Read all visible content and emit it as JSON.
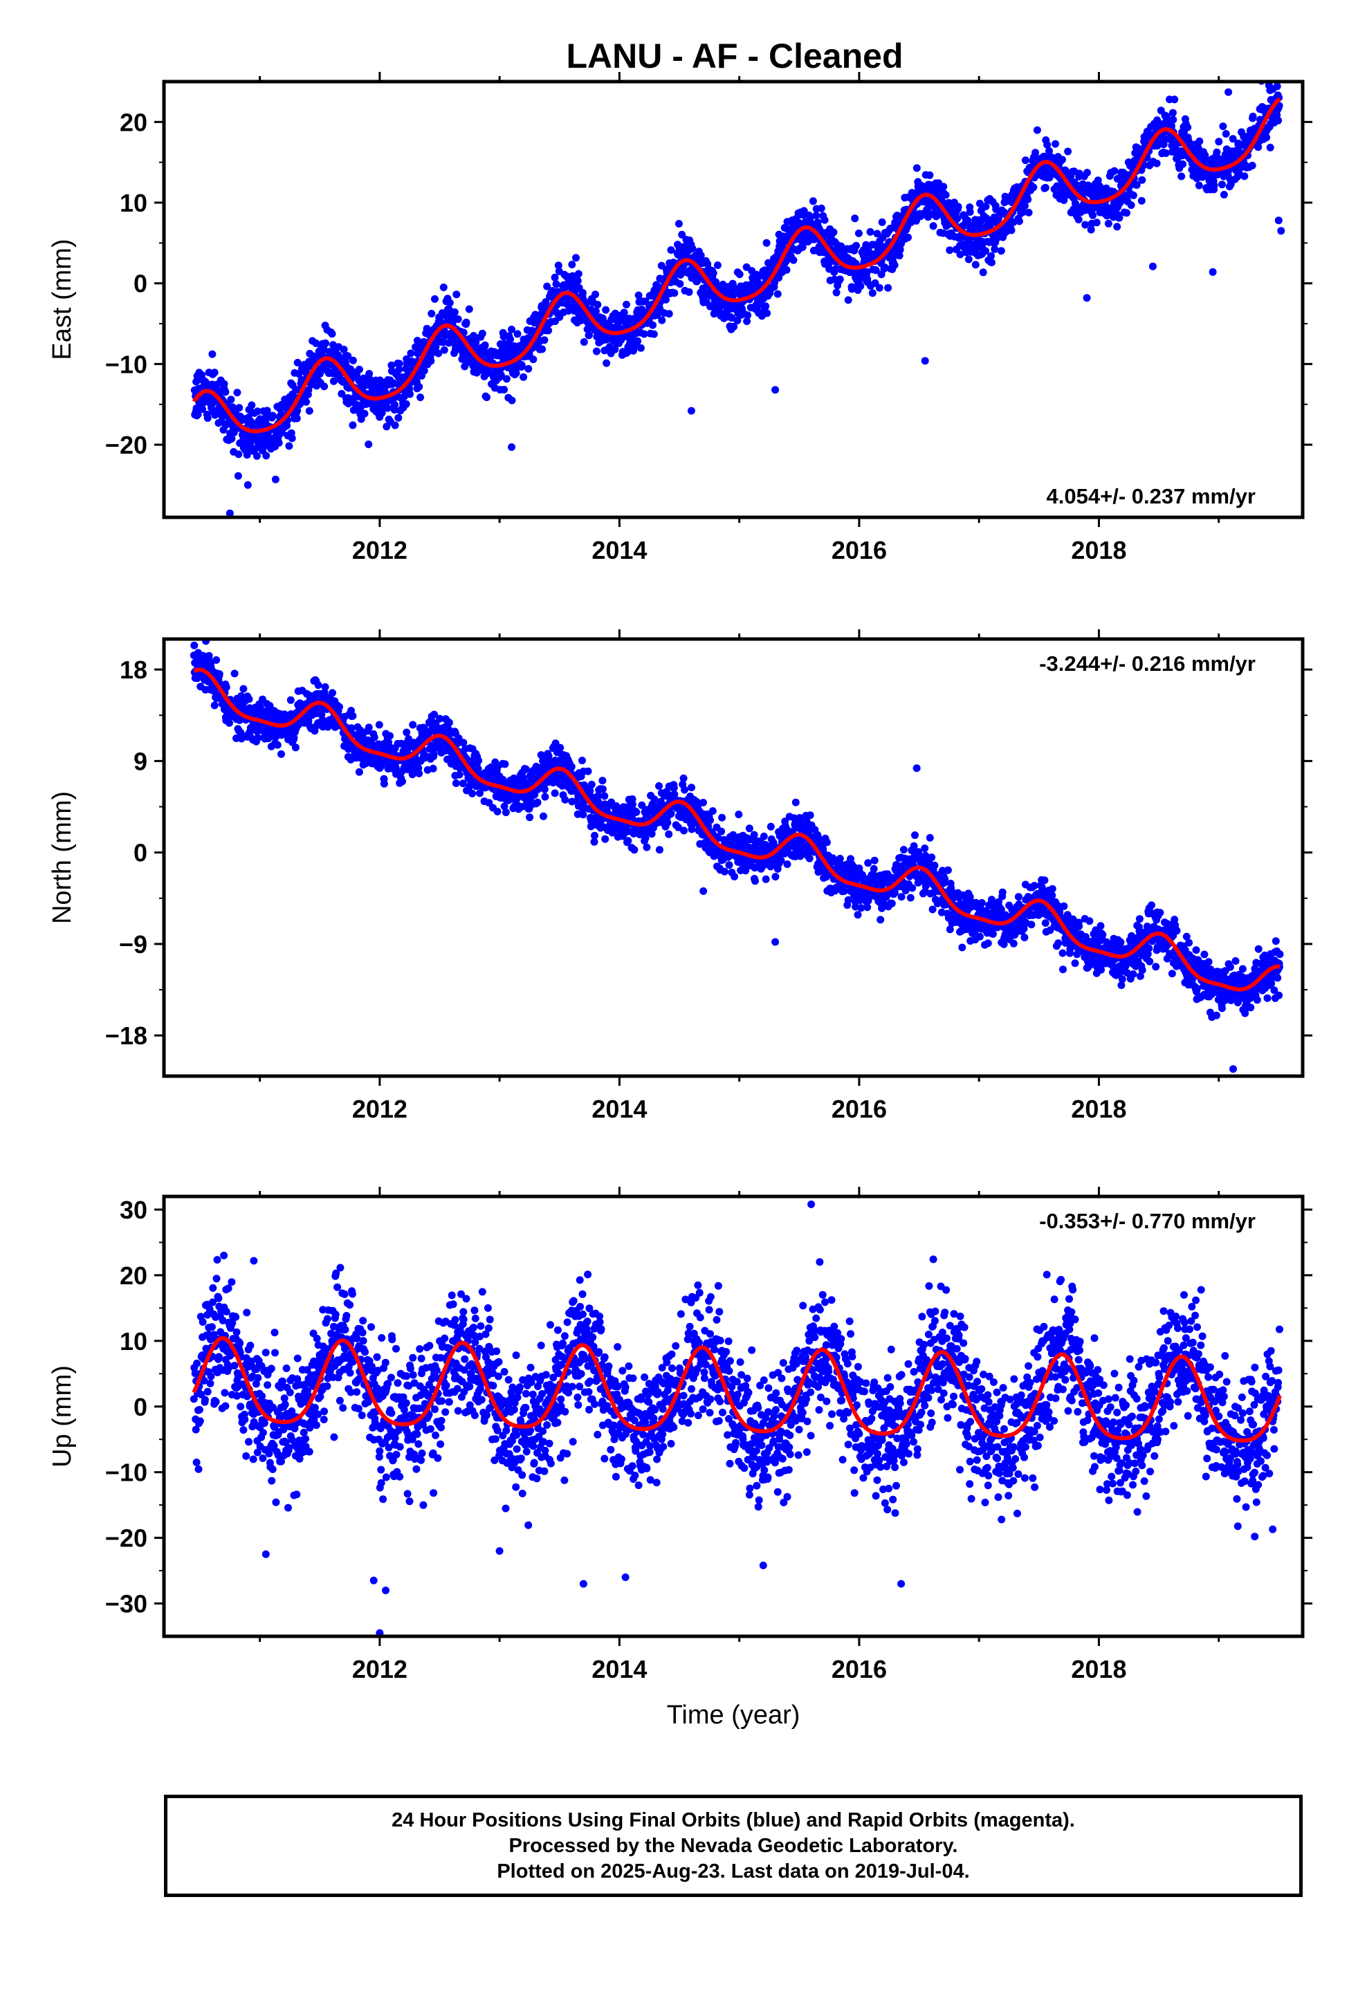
{
  "title": "LANU  - AF - Cleaned",
  "colors": {
    "points": "#0000ff",
    "fit": "#ff0000",
    "frame": "#000000"
  },
  "chart_data": [
    {
      "type": "scatter",
      "component": "east",
      "ylabel": "East (mm)",
      "xlabel": "",
      "xlim": [
        2010.2,
        2019.7
      ],
      "ylim": [
        -29,
        25
      ],
      "x_ticks": [
        2012,
        2014,
        2016,
        2018
      ],
      "x_tick_labels": [
        "2012",
        "2014",
        "2016",
        "2018"
      ],
      "y_ticks": [
        -20,
        -10,
        0,
        10,
        20
      ],
      "y_tick_labels": [
        "−20",
        "−10",
        "0",
        "10",
        "20"
      ],
      "rate_label": "4.054+/- 0.237 mm/yr",
      "rate_position": "bottom-right",
      "data_span": [
        2010.45,
        2019.51
      ],
      "fit": {
        "intercept_at_2015": 0.7,
        "rate": 4.054,
        "annual_amp": 3.4,
        "annual_phase_month": 6.5,
        "semiannual_amp": 0.6
      },
      "scatter_sd": 1.6,
      "outliers": [
        [
          2010.75,
          -28.5
        ],
        [
          2010.9,
          -25
        ],
        [
          2013.1,
          -20.3
        ],
        [
          2014.6,
          -15.8
        ],
        [
          2015.3,
          -13.2
        ],
        [
          2016.55,
          -9.6
        ],
        [
          2017.9,
          -1.8
        ],
        [
          2018.45,
          2.1
        ],
        [
          2018.95,
          1.4
        ],
        [
          2019.5,
          7.8
        ],
        [
          2019.52,
          6.5
        ],
        [
          2019.08,
          23.7
        ]
      ],
      "fit_label": "red"
    },
    {
      "type": "scatter",
      "component": "north",
      "ylabel": "North (mm)",
      "xlabel": "",
      "xlim": [
        2010.2,
        2019.7
      ],
      "ylim": [
        -22,
        21
      ],
      "x_ticks": [
        2012,
        2014,
        2016,
        2018
      ],
      "x_tick_labels": [
        "2012",
        "2014",
        "2016",
        "2018"
      ],
      "y_ticks": [
        -18,
        -9,
        0,
        9,
        18
      ],
      "y_tick_labels": [
        "−18",
        "−9",
        "0",
        "9",
        "18"
      ],
      "rate_label": "-3.244+/- 0.216 mm/yr",
      "rate_position": "top-right",
      "data_span": [
        2010.45,
        2019.51
      ],
      "fit": {
        "intercept_at_2015": 1.2,
        "rate": -3.244,
        "annual_amp": 1.7,
        "annual_phase_month": 6.2,
        "semiannual_amp": 0.5
      },
      "scatter_sd": 1.1,
      "outliers": [
        [
          2016.48,
          8.3
        ],
        [
          2014.7,
          -3.8
        ],
        [
          2015.3,
          -8.8
        ],
        [
          2017.7,
          -11.5
        ],
        [
          2019.12,
          -21.3
        ],
        [
          2010.55,
          20.8
        ]
      ],
      "fit_label": "red"
    },
    {
      "type": "scatter",
      "component": "up",
      "ylabel": "Up (mm)",
      "xlabel": "Time (year)",
      "xlim": [
        2010.2,
        2019.7
      ],
      "ylim": [
        -35,
        32
      ],
      "x_ticks": [
        2012,
        2014,
        2016,
        2018
      ],
      "x_tick_labels": [
        "2012",
        "2014",
        "2016",
        "2018"
      ],
      "y_ticks": [
        -30,
        -20,
        -10,
        0,
        10,
        20,
        30
      ],
      "y_tick_labels": [
        "−30",
        "−20",
        "−10",
        "0",
        "10",
        "20",
        "30"
      ],
      "rate_label": "-0.353+/- 0.770 mm/yr",
      "rate_position": "top-right",
      "data_span": [
        2010.45,
        2019.51
      ],
      "fit": {
        "intercept_at_2015": 1.4,
        "rate": -0.353,
        "annual_amp": 6.3,
        "annual_phase_month": 8.3,
        "semiannual_amp": 1.2
      },
      "scatter_sd": 4.8,
      "outliers": [
        [
          2015.6,
          30.8
        ],
        [
          2010.7,
          23
        ],
        [
          2010.95,
          22.2
        ],
        [
          2012.0,
          -34.5
        ],
        [
          2012.05,
          -28
        ],
        [
          2011.95,
          -26.5
        ],
        [
          2013.7,
          -27
        ],
        [
          2014.05,
          -26
        ],
        [
          2016.35,
          -27
        ],
        [
          2011.05,
          -22.5
        ],
        [
          2013.0,
          -22
        ],
        [
          2015.2,
          -24.2
        ],
        [
          2019.3,
          -19.8
        ],
        [
          2019.45,
          -18.7
        ]
      ],
      "fit_label": "red"
    }
  ],
  "footer": {
    "line1": "24 Hour Positions Using Final Orbits (blue) and Rapid Orbits (magenta).",
    "line2": "Processed by the Nevada Geodetic Laboratory.",
    "line3": "Plotted on 2025-Aug-23. Last data on 2019-Jul-04."
  }
}
